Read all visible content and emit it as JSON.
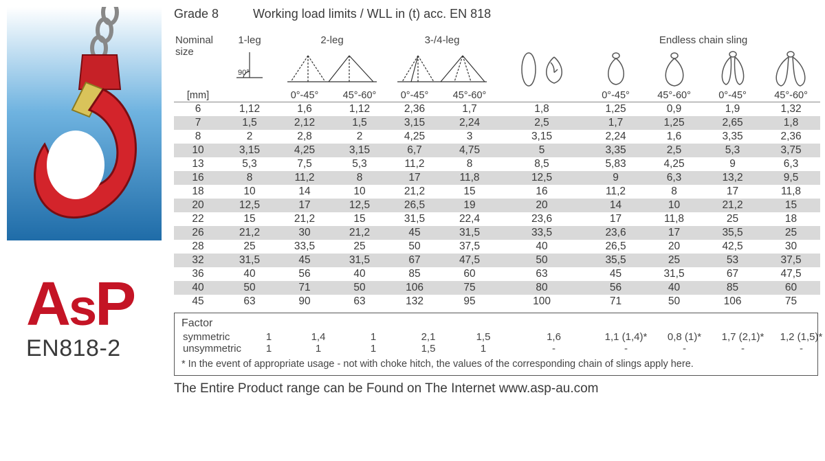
{
  "title": {
    "grade": "Grade 8",
    "rest": "Working load limits / WLL in (t) acc. EN 818"
  },
  "logo": {
    "brand": "AsP",
    "sub": "EN818-2"
  },
  "headers": {
    "nominal_line1": "Nominal",
    "nominal_line2": "size",
    "leg1": "1-leg",
    "leg2": "2-leg",
    "leg34": "3-/4-leg",
    "endless": "Endless chain sling",
    "unit": "[mm]",
    "angle0_45": "0°-45°",
    "angle45_60": "45°-60°",
    "ninety": "90°"
  },
  "columns": [
    "nom",
    "c1",
    "c2",
    "c3",
    "c4",
    "c5",
    "c6",
    "c7",
    "c8",
    "c9",
    "c10"
  ],
  "rows": [
    {
      "nom": "6",
      "c1": "1,12",
      "c2": "1,6",
      "c3": "1,12",
      "c4": "2,36",
      "c5": "1,7",
      "c6": "1,8",
      "c7": "1,25",
      "c8": "0,9",
      "c9": "1,9",
      "c10": "1,32"
    },
    {
      "nom": "7",
      "c1": "1,5",
      "c2": "2,12",
      "c3": "1,5",
      "c4": "3,15",
      "c5": "2,24",
      "c6": "2,5",
      "c7": "1,7",
      "c8": "1,25",
      "c9": "2,65",
      "c10": "1,8"
    },
    {
      "nom": "8",
      "c1": "2",
      "c2": "2,8",
      "c3": "2",
      "c4": "4,25",
      "c5": "3",
      "c6": "3,15",
      "c7": "2,24",
      "c8": "1,6",
      "c9": "3,35",
      "c10": "2,36"
    },
    {
      "nom": "10",
      "c1": "3,15",
      "c2": "4,25",
      "c3": "3,15",
      "c4": "6,7",
      "c5": "4,75",
      "c6": "5",
      "c7": "3,35",
      "c8": "2,5",
      "c9": "5,3",
      "c10": "3,75"
    },
    {
      "nom": "13",
      "c1": "5,3",
      "c2": "7,5",
      "c3": "5,3",
      "c4": "11,2",
      "c5": "8",
      "c6": "8,5",
      "c7": "5,83",
      "c8": "4,25",
      "c9": "9",
      "c10": "6,3"
    },
    {
      "nom": "16",
      "c1": "8",
      "c2": "11,2",
      "c3": "8",
      "c4": "17",
      "c5": "11,8",
      "c6": "12,5",
      "c7": "9",
      "c8": "6,3",
      "c9": "13,2",
      "c10": "9,5"
    },
    {
      "nom": "18",
      "c1": "10",
      "c2": "14",
      "c3": "10",
      "c4": "21,2",
      "c5": "15",
      "c6": "16",
      "c7": "11,2",
      "c8": "8",
      "c9": "17",
      "c10": "11,8"
    },
    {
      "nom": "20",
      "c1": "12,5",
      "c2": "17",
      "c3": "12,5",
      "c4": "26,5",
      "c5": "19",
      "c6": "20",
      "c7": "14",
      "c8": "10",
      "c9": "21,2",
      "c10": "15"
    },
    {
      "nom": "22",
      "c1": "15",
      "c2": "21,2",
      "c3": "15",
      "c4": "31,5",
      "c5": "22,4",
      "c6": "23,6",
      "c7": "17",
      "c8": "11,8",
      "c9": "25",
      "c10": "18"
    },
    {
      "nom": "26",
      "c1": "21,2",
      "c2": "30",
      "c3": "21,2",
      "c4": "45",
      "c5": "31,5",
      "c6": "33,5",
      "c7": "23,6",
      "c8": "17",
      "c9": "35,5",
      "c10": "25"
    },
    {
      "nom": "28",
      "c1": "25",
      "c2": "33,5",
      "c3": "25",
      "c4": "50",
      "c5": "37,5",
      "c6": "40",
      "c7": "26,5",
      "c8": "20",
      "c9": "42,5",
      "c10": "30"
    },
    {
      "nom": "32",
      "c1": "31,5",
      "c2": "45",
      "c3": "31,5",
      "c4": "67",
      "c5": "47,5",
      "c6": "50",
      "c7": "35,5",
      "c8": "25",
      "c9": "53",
      "c10": "37,5"
    },
    {
      "nom": "36",
      "c1": "40",
      "c2": "56",
      "c3": "40",
      "c4": "85",
      "c5": "60",
      "c6": "63",
      "c7": "45",
      "c8": "31,5",
      "c9": "67",
      "c10": "47,5"
    },
    {
      "nom": "40",
      "c1": "50",
      "c2": "71",
      "c3": "50",
      "c4": "106",
      "c5": "75",
      "c6": "80",
      "c7": "56",
      "c8": "40",
      "c9": "85",
      "c10": "60"
    },
    {
      "nom": "45",
      "c1": "63",
      "c2": "90",
      "c3": "63",
      "c4": "132",
      "c5": "95",
      "c6": "100",
      "c7": "71",
      "c8": "50",
      "c9": "106",
      "c10": "75"
    }
  ],
  "factor": {
    "title": "Factor",
    "sym_label": "symmetric",
    "unsym_label": "unsymmetric",
    "sym": [
      "1",
      "1,4",
      "1",
      "2,1",
      "1,5",
      "1,6",
      "1,1 (1,4)*",
      "0,8 (1)*",
      "1,7 (2,1)*",
      "1,2 (1,5)*"
    ],
    "unsym": [
      "1",
      "1",
      "1",
      "1,5",
      "1",
      "-",
      "-",
      "-",
      "-",
      "-"
    ],
    "note": "* In the event of appropriate usage - not with choke hitch, the values of the corresponding chain of slings apply here."
  },
  "footer": "The Entire Product range can be Found on The Internet   www.asp-au.com",
  "style": {
    "alt_row_bg": "#d9d9d9",
    "text_color": "#3a3a3a",
    "brand_color": "#c41425"
  }
}
